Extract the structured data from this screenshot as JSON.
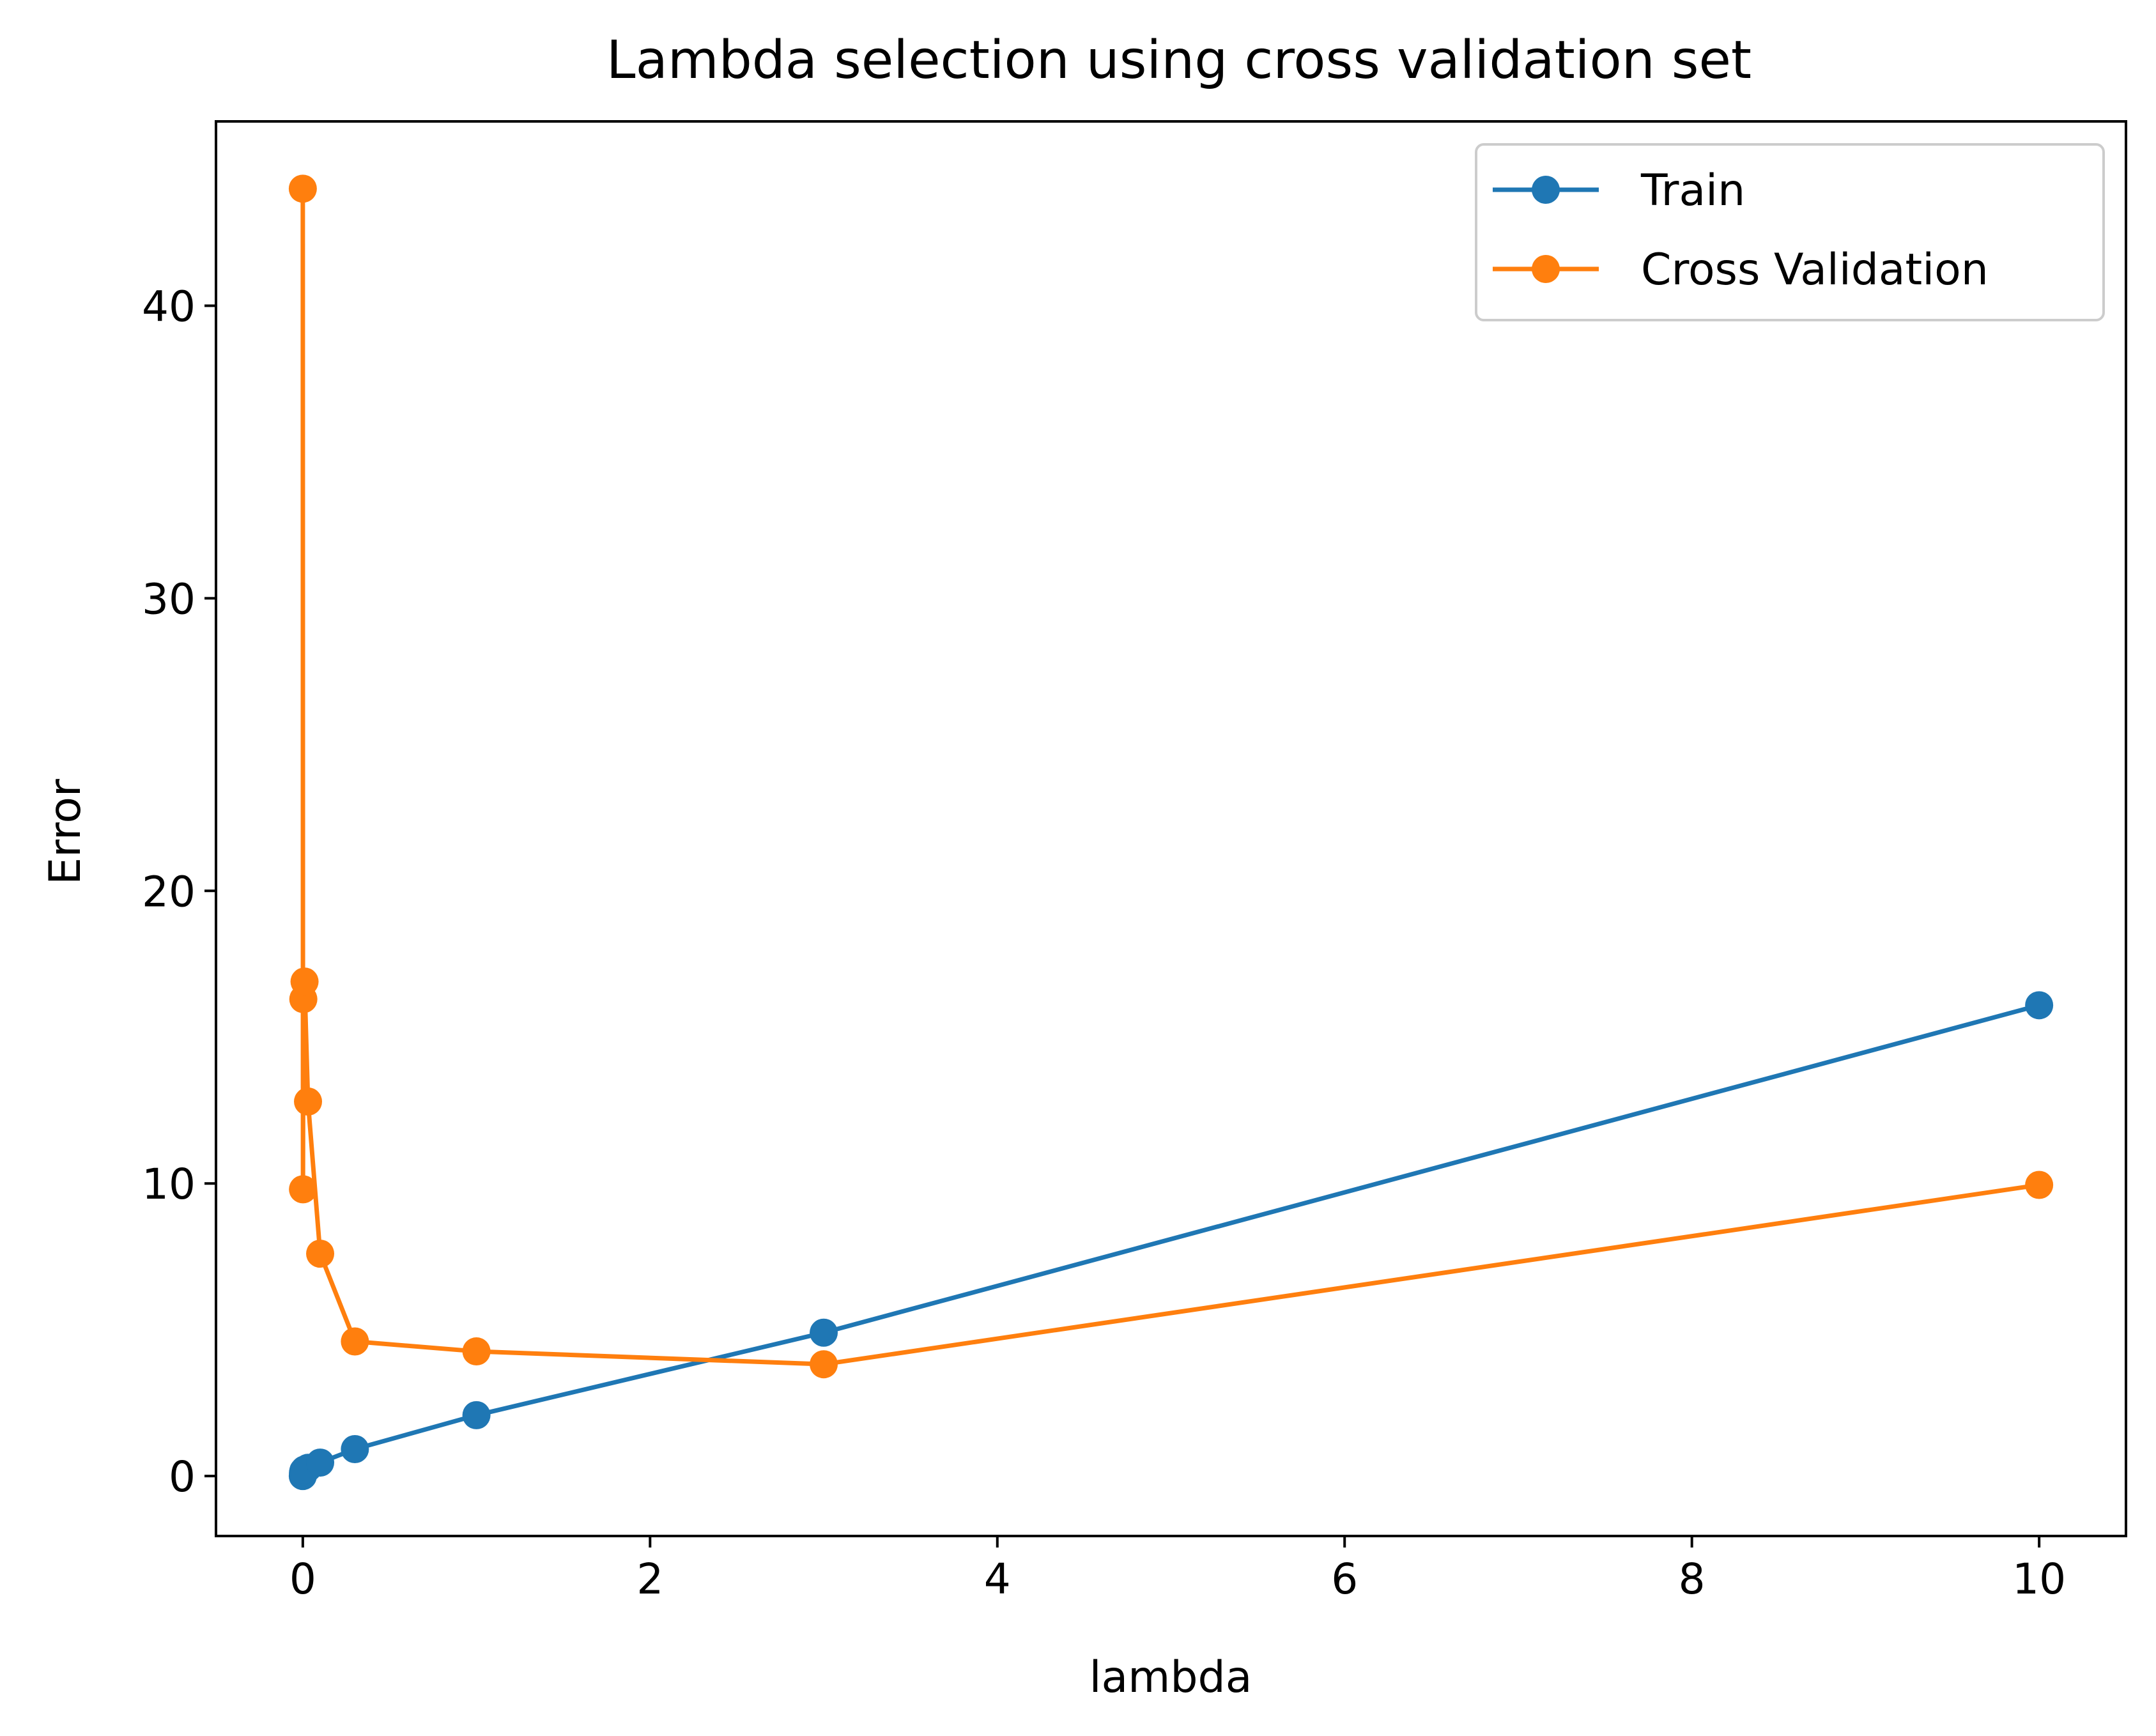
{
  "chart_data": {
    "type": "line",
    "title": "Lambda selection using cross validation set",
    "xlabel": "lambda",
    "ylabel": "Error",
    "xlim": [
      -0.5,
      10.5
    ],
    "ylim": [
      -2.05,
      46.3
    ],
    "xticks": [
      0,
      2,
      4,
      6,
      8,
      10
    ],
    "yticks": [
      0,
      10,
      20,
      30,
      40
    ],
    "grid": false,
    "legend_position": "top-right",
    "x": [
      0,
      0.001,
      0.003,
      0.01,
      0.03,
      0.1,
      0.3,
      1,
      3,
      10
    ],
    "series": [
      {
        "name": "Train",
        "color": "#1f77b4",
        "values": [
          0.0,
          0.11,
          0.17,
          0.22,
          0.28,
          0.46,
          0.92,
          2.08,
          4.9,
          16.09
        ]
      },
      {
        "name": "Cross Validation",
        "color": "#ff7f0e",
        "values": [
          44.0,
          9.8,
          16.3,
          16.9,
          12.8,
          7.6,
          4.6,
          4.26,
          3.82,
          9.95
        ]
      }
    ]
  }
}
